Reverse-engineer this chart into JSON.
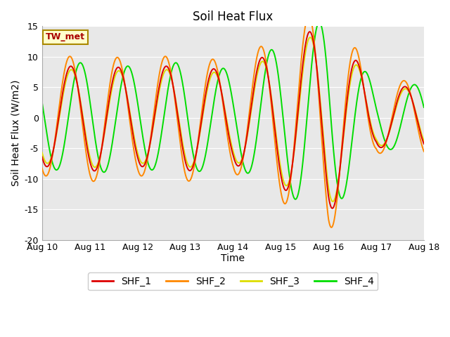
{
  "title": "Soil Heat Flux",
  "ylabel": "Soil Heat Flux (W/m2)",
  "xlabel": "Time",
  "ylim": [
    -20,
    15
  ],
  "yticks": [
    -20,
    -15,
    -10,
    -5,
    0,
    5,
    10,
    15
  ],
  "xtick_labels": [
    "Aug 10",
    "Aug 11",
    "Aug 12",
    "Aug 13",
    "Aug 14",
    "Aug 15",
    "Aug 16",
    "Aug 17",
    "Aug 18"
  ],
  "colors": {
    "SHF_1": "#dd0000",
    "SHF_2": "#ff8800",
    "SHF_3": "#dddd00",
    "SHF_4": "#00dd00"
  },
  "annotation_text": "TW_met",
  "annotation_color": "#aa0000",
  "annotation_bg": "#ffffcc",
  "annotation_edge": "#aa8800",
  "fig_bg": "#ffffff",
  "plot_bg": "#e8e8e8",
  "grid_color": "#ffffff",
  "linewidth": 1.4,
  "title_fontsize": 12,
  "label_fontsize": 10,
  "tick_fontsize": 9,
  "legend_fontsize": 10
}
